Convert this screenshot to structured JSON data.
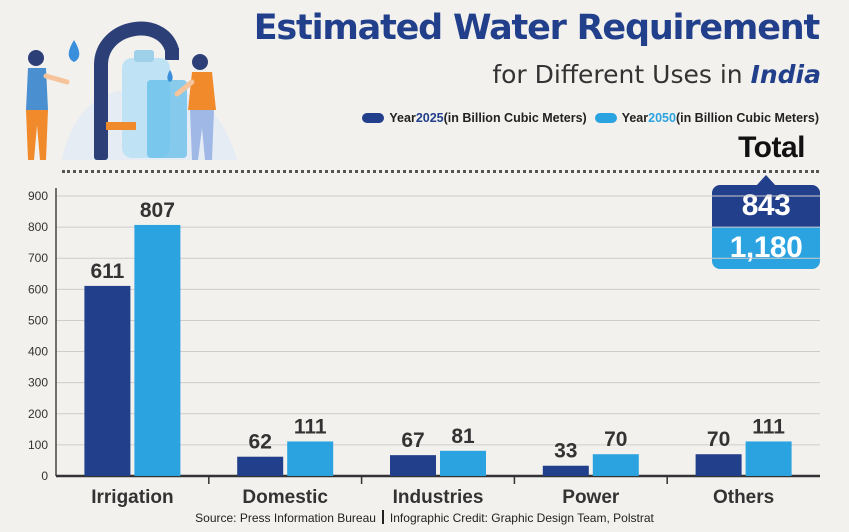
{
  "title": {
    "line1": "Estimated Water Requirement",
    "line2_prefix": "for Different Uses in ",
    "line2_emph": "India"
  },
  "legend": {
    "s1_prefix": "Year ",
    "s1_year": "2025",
    "s1_suffix": " (in Billion Cubic Meters)",
    "s2_prefix": "Year ",
    "s2_year": "2050",
    "s2_suffix": " (in Billion Cubic Meters)"
  },
  "total": {
    "label": "Total",
    "value_2025": "843",
    "value_2050": "1,180"
  },
  "colors": {
    "series_2025": "#213f8a",
    "series_2050": "#2aa3e0"
  },
  "chart_data": {
    "type": "bar",
    "title": "Estimated Water Requirement for Different Uses in India",
    "xlabel": "",
    "ylabel": "",
    "categories": [
      "Irrigation",
      "Domestic",
      "Industries",
      "Power",
      "Others"
    ],
    "series": [
      {
        "name": "Year 2025 (in Billion Cubic Meters)",
        "values": [
          611,
          62,
          67,
          33,
          70
        ]
      },
      {
        "name": "Year 2050 (in Billion Cubic Meters)",
        "values": [
          807,
          111,
          81,
          70,
          111
        ]
      }
    ],
    "ylim": [
      0,
      900
    ],
    "yticks": [
      0,
      100,
      200,
      300,
      400,
      500,
      600,
      700,
      800,
      900
    ],
    "grid": true,
    "legend_position": "top-right"
  },
  "footer": {
    "source": "Source: Press Information Bureau",
    "credit": "Infographic Credit: Graphic Design Team, Polstrat"
  }
}
